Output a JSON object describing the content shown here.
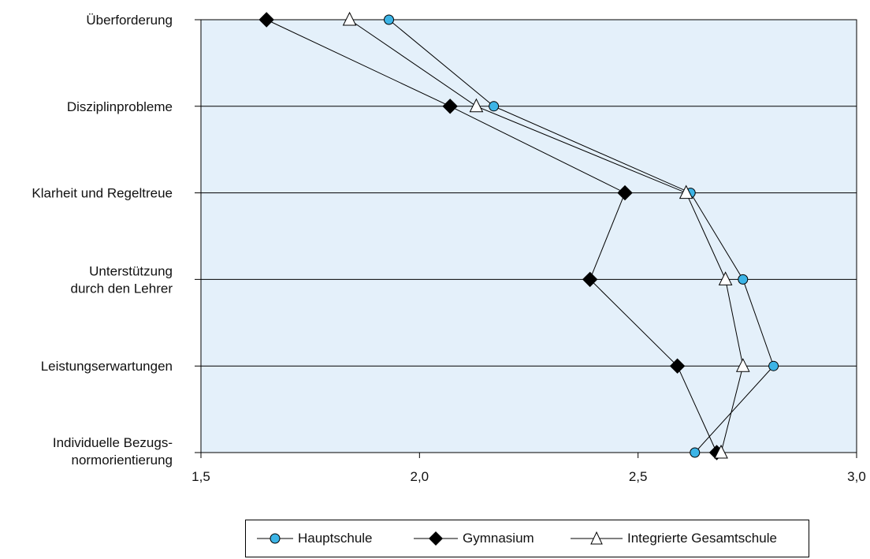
{
  "chart_data": {
    "type": "line",
    "orientation": "horizontal-values",
    "categories": [
      [
        "Überforderung"
      ],
      [
        "Disziplinprobleme"
      ],
      [
        "Klarheit und Regeltreue"
      ],
      [
        "Unterstützung",
        "durch den Lehrer"
      ],
      [
        "Leistungserwartungen"
      ],
      [
        "Individuelle Bezugs-",
        "normorientierung"
      ]
    ],
    "xlim": [
      1.5,
      3.0
    ],
    "ticks": [
      1.5,
      2.0,
      2.5,
      3.0
    ],
    "tick_labels": [
      "1,5",
      "2,0",
      "2,5",
      "3,0"
    ],
    "grid": "horizontal lines at categories",
    "background_color": "#e4f0fa",
    "legend_position": "bottom",
    "series": [
      {
        "name": "Hauptschule",
        "marker": "circle",
        "color": "#3cb4e6",
        "values": [
          1.93,
          2.17,
          2.62,
          2.74,
          2.81,
          2.63
        ]
      },
      {
        "name": "Gymnasium",
        "marker": "diamond",
        "color": "#000000",
        "values": [
          1.65,
          2.07,
          2.47,
          2.39,
          2.59,
          2.68
        ]
      },
      {
        "name": "Integrierte Gesamtschule",
        "marker": "triangle",
        "color": "#ffffff",
        "values": [
          1.84,
          2.13,
          2.61,
          2.7,
          2.74,
          2.69
        ]
      }
    ]
  }
}
